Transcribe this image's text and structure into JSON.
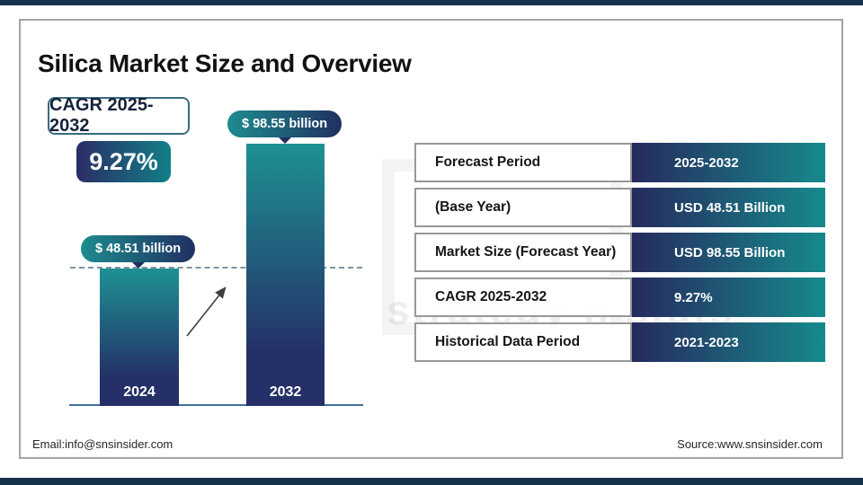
{
  "title": "Silica Market Size and Overview",
  "cagr_box": {
    "label": "CAGR 2025-2032",
    "value": "9.27%"
  },
  "chart_data": {
    "type": "bar",
    "categories": [
      "2024",
      "2032"
    ],
    "values": [
      48.51,
      98.55
    ],
    "value_labels": [
      "$ 48.51 billion",
      "$ 98.55 billion"
    ],
    "unit": "USD billion",
    "ylim": [
      0,
      100
    ],
    "grid": false,
    "annotations": [
      "dashed guide line at 2024 level",
      "upward growth arrow between bars"
    ]
  },
  "table": {
    "rows": [
      {
        "label": "Forecast Period",
        "value": "2025-2032"
      },
      {
        "label": "(Base Year)",
        "value": "USD 48.51 Billion"
      },
      {
        "label": "Market Size (Forecast Year)",
        "value": "USD 98.55 Billion"
      },
      {
        "label": "CAGR 2025-2032",
        "value": "9.27%"
      },
      {
        "label": "Historical Data Period",
        "value": "2021-2023"
      }
    ]
  },
  "footer": {
    "email": "Email:info@snsinsider.com",
    "source": "Source:www.snsinsider.com"
  },
  "watermark": {
    "text": "strategy n stats"
  },
  "colors": {
    "strip_navy": "#16334c",
    "gradient_navy": "#262a5e",
    "gradient_teal": "#16898c",
    "bar_top_teal": "#1e9193",
    "bar_bottom_navy": "#243067",
    "baseline_blue": "#3f6f9c"
  }
}
